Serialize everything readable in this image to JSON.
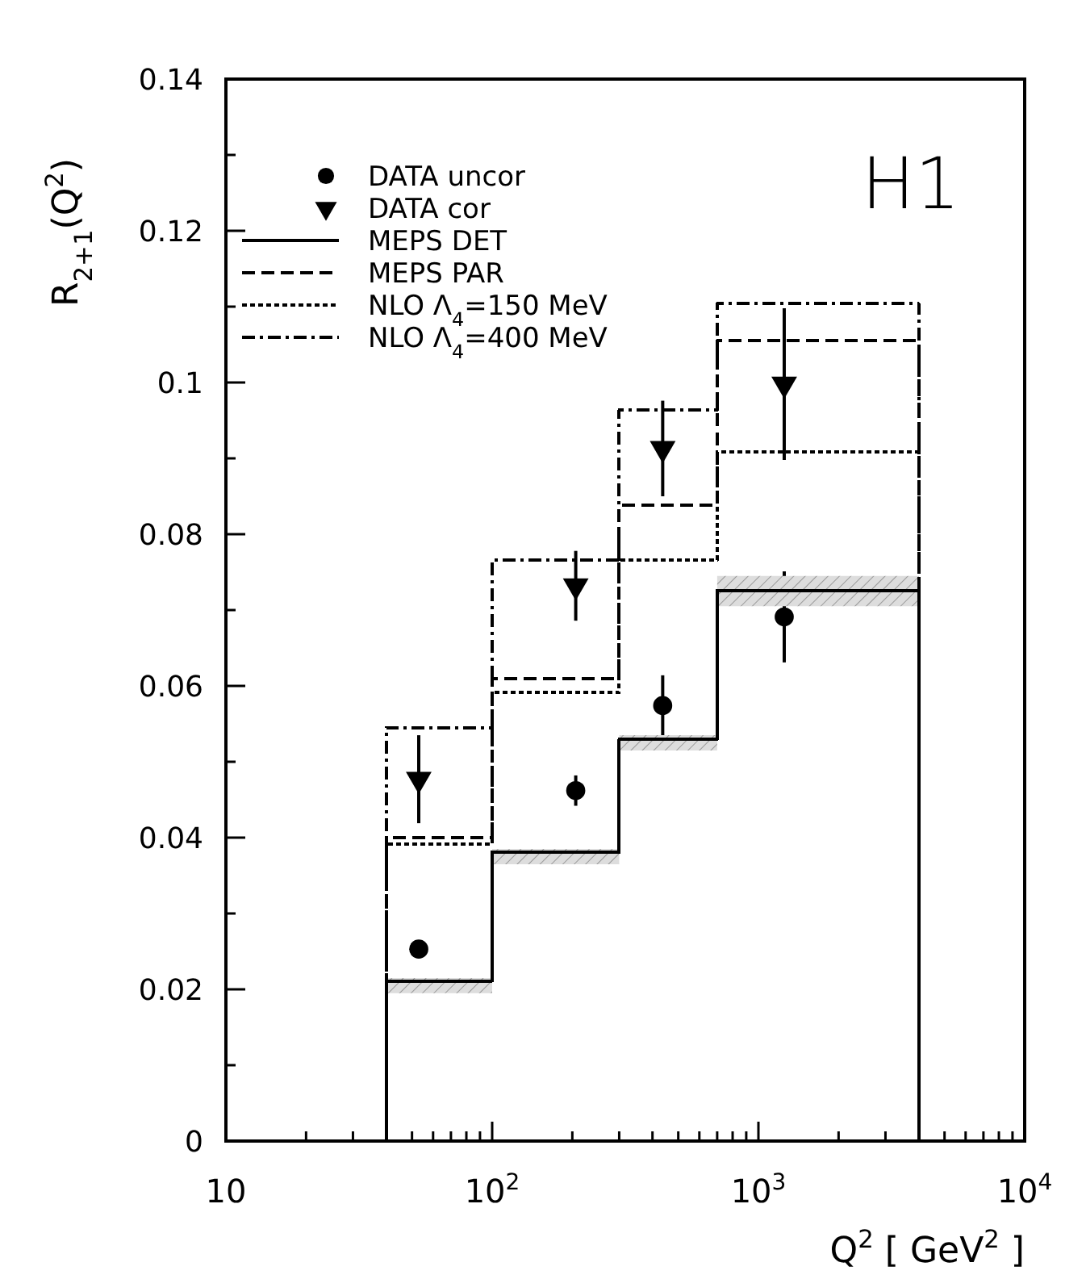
{
  "chart_data": {
    "type": "step",
    "xlabel": "Q$^{2}$  [ GeV$^{2}$ ]",
    "ylabel": "R$_{2+1}$(Q$^{2}$)",
    "log": "x",
    "legend": "top left",
    "annotations": [
      "H1"
    ],
    "xlim": [
      10,
      10000
    ],
    "xticks": [
      {
        "value": 10,
        "label": "10"
      },
      {
        "value": 20,
        "label": null
      },
      {
        "value": 30,
        "label": null
      },
      {
        "value": 40,
        "label": null
      },
      {
        "value": 50,
        "label": null
      },
      {
        "value": 60,
        "label": null
      },
      {
        "value": 70,
        "label": null
      },
      {
        "value": 80,
        "label": null
      },
      {
        "value": 90,
        "label": null
      },
      {
        "value": 100,
        "label": "10$^{2}$"
      },
      {
        "value": 200,
        "label": null
      },
      {
        "value": 300,
        "label": null
      },
      {
        "value": 400,
        "label": null
      },
      {
        "value": 500,
        "label": null
      },
      {
        "value": 600,
        "label": null
      },
      {
        "value": 700,
        "label": null
      },
      {
        "value": 800,
        "label": null
      },
      {
        "value": 900,
        "label": null
      },
      {
        "value": 1000,
        "label": "10$^{3}$"
      },
      {
        "value": 2000,
        "label": null
      },
      {
        "value": 3000,
        "label": null
      },
      {
        "value": 4000,
        "label": null
      },
      {
        "value": 5000,
        "label": null
      },
      {
        "value": 6000,
        "label": null
      },
      {
        "value": 7000,
        "label": null
      },
      {
        "value": 8000,
        "label": null
      },
      {
        "value": 9000,
        "label": null
      },
      {
        "value": 10000,
        "label": "10$^{4}$"
      }
    ],
    "ylim": [
      0,
      0.14
    ],
    "yticks": [
      0,
      {
        "value": 0.01,
        "label": null
      },
      0.02,
      {
        "value": 0.03,
        "label": null
      },
      0.04,
      {
        "value": 0.05,
        "label": null
      },
      0.06,
      {
        "value": 0.07,
        "label": null
      },
      0.08,
      {
        "value": 0.09,
        "label": null
      },
      0.1,
      {
        "value": 0.11,
        "label": null
      },
      0.12,
      {
        "value": 0.13,
        "label": null
      },
      0.14
    ],
    "x": [
      40,
      40,
      100,
      300,
      700,
      4000,
      4000
    ],
    "series": [
      {
        "name": "DATA uncor",
        "type": "scatter",
        "marker": "circle",
        "color": "#000000",
        "x": [
          53,
          206,
          437,
          1250
        ],
        "values": [
          0.0253,
          0.0462,
          0.0574,
          0.0691
        ],
        "errors": [
          null,
          0.002,
          0.004,
          0.006
        ]
      },
      {
        "name": "DATA cor",
        "type": "scatter",
        "marker": "triangle",
        "color": "#000000",
        "x": [
          53,
          206,
          437,
          1250
        ],
        "values": [
          0.0477,
          0.0732,
          0.0913,
          0.0998
        ],
        "errors": [
          0.0058,
          0.0046,
          0.0063,
          0.01
        ]
      },
      {
        "name": "MEPS DET",
        "line_style": "solid",
        "color": "#000000",
        "values": [
          0,
          0.0211,
          0.0381,
          0.053,
          0.0726,
          0.0726,
          0
        ],
        "lower": [
          null,
          0.0195,
          0.0365,
          0.0515,
          0.0705,
          0.0705,
          null
        ],
        "upper": [
          null,
          0.0215,
          0.0385,
          0.0535,
          0.0745,
          0.0745,
          null
        ]
      },
      {
        "name": "MEPS PAR",
        "line_style": "dashed",
        "color": "#000000",
        "values": [
          0,
          0.04,
          0.061,
          0.0838,
          0.1055,
          0.1055,
          0
        ]
      },
      {
        "name": "NLO Λ$_{4}$=150 MeV",
        "line_style": "dotted",
        "color": "#000000",
        "values": [
          0,
          0.0391,
          0.0591,
          0.0766,
          0.0909,
          0.0909,
          0
        ]
      },
      {
        "name": "NLO Λ$_{4}$=400 MeV",
        "line_style": "dashdot",
        "color": "#000000",
        "values": [
          0,
          0.0545,
          0.0766,
          0.0964,
          0.1104,
          0.1104,
          0
        ]
      }
    ]
  }
}
